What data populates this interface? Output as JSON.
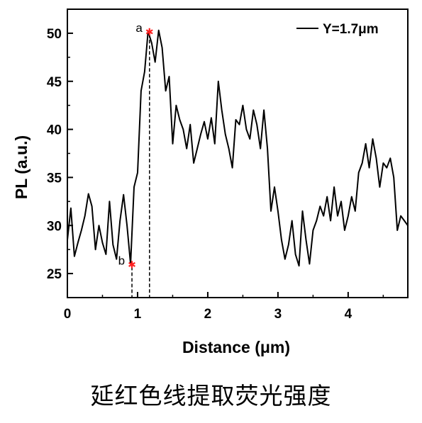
{
  "chart_data": {
    "type": "line",
    "xlabel": "Distance (μm)",
    "ylabel": "PL (a.u.)",
    "xlim": [
      0,
      4.85
    ],
    "ylim": [
      22.5,
      52.5
    ],
    "xticks": [
      0,
      1,
      2,
      3,
      4
    ],
    "yticks": [
      25,
      30,
      35,
      40,
      45,
      50
    ],
    "legend": {
      "position": "top-right",
      "label": "Y=1.7μm"
    },
    "series": [
      {
        "name": "Y=1.7μm",
        "color": "#000000",
        "x": [
          0.0,
          0.05,
          0.1,
          0.15,
          0.2,
          0.25,
          0.3,
          0.35,
          0.4,
          0.45,
          0.5,
          0.55,
          0.6,
          0.65,
          0.7,
          0.75,
          0.8,
          0.85,
          0.9,
          0.95,
          1.0,
          1.05,
          1.1,
          1.15,
          1.2,
          1.25,
          1.3,
          1.35,
          1.4,
          1.45,
          1.5,
          1.55,
          1.6,
          1.65,
          1.7,
          1.75,
          1.8,
          1.85,
          1.9,
          1.95,
          2.0,
          2.05,
          2.1,
          2.15,
          2.2,
          2.25,
          2.3,
          2.35,
          2.4,
          2.45,
          2.5,
          2.55,
          2.6,
          2.65,
          2.7,
          2.75,
          2.8,
          2.85,
          2.9,
          2.95,
          3.0,
          3.05,
          3.1,
          3.15,
          3.2,
          3.25,
          3.3,
          3.35,
          3.4,
          3.45,
          3.5,
          3.55,
          3.6,
          3.65,
          3.7,
          3.75,
          3.8,
          3.85,
          3.9,
          3.95,
          4.0,
          4.05,
          4.1,
          4.15,
          4.2,
          4.25,
          4.3,
          4.35,
          4.4,
          4.45,
          4.5,
          4.55,
          4.6,
          4.65,
          4.7,
          4.75,
          4.8,
          4.85
        ],
        "y": [
          28.5,
          31.8,
          26.8,
          28.2,
          29.5,
          31.0,
          33.3,
          32.0,
          27.5,
          30.0,
          28.2,
          27.0,
          32.5,
          28.0,
          26.5,
          30.5,
          33.2,
          30.0,
          26.0,
          34.0,
          35.5,
          44.0,
          46.0,
          50.2,
          49.0,
          47.0,
          50.3,
          48.5,
          44.0,
          45.5,
          38.5,
          42.5,
          41.0,
          40.0,
          38.0,
          40.5,
          36.5,
          38.0,
          39.5,
          40.8,
          39.0,
          41.2,
          38.5,
          45.0,
          42.0,
          39.5,
          38.0,
          36.0,
          41.0,
          40.5,
          42.5,
          40.0,
          39.0,
          42.0,
          40.5,
          38.0,
          42.0,
          38.0,
          31.5,
          34.0,
          31.5,
          28.5,
          26.5,
          28.0,
          30.5,
          27.0,
          25.8,
          31.5,
          28.5,
          26.0,
          29.5,
          30.5,
          32.0,
          31.0,
          33.0,
          30.5,
          34.0,
          31.0,
          32.5,
          29.5,
          31.0,
          33.0,
          31.5,
          35.5,
          36.5,
          38.5,
          36.0,
          39.0,
          37.0,
          34.0,
          36.5,
          36.0,
          37.0,
          35.0,
          29.5,
          31.0,
          30.5,
          30.0
        ]
      }
    ],
    "markers": [
      {
        "label": "a",
        "x": 1.17,
        "y": 50.2,
        "color": "#ff2020"
      },
      {
        "label": "b",
        "x": 0.92,
        "y": 26.0,
        "color": "#ff2020"
      }
    ]
  },
  "caption": "延红色线提取荧光强度"
}
